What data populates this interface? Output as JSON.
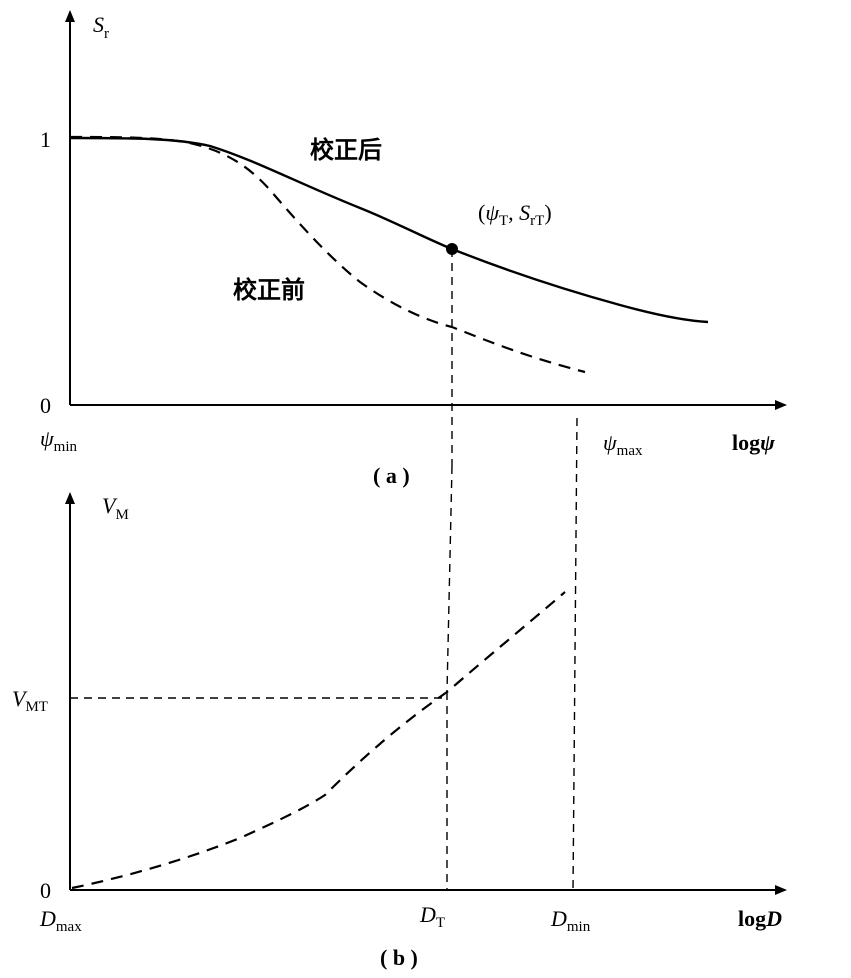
{
  "panel_a": {
    "y_axis_label": "S",
    "y_axis_label_sub": "r",
    "tick_one": "1",
    "tick_zero": "0",
    "x_min_label": "ψ",
    "x_min_label_sub": "min",
    "x_max_label": "ψ",
    "x_max_label_sub": "max",
    "x_axis_label_prefix": "log",
    "x_axis_label_var": "ψ",
    "label_after": "校正后",
    "label_before": "校正前",
    "point_label_open": "(",
    "point_label_psi": "ψ",
    "point_label_psi_sub": "T",
    "point_label_comma": ", ",
    "point_label_s": "S",
    "point_label_s_sub": "rT",
    "point_label_close": ")",
    "caption": "( a )"
  },
  "panel_b": {
    "y_axis_label": "V",
    "y_axis_label_sub": "M",
    "tick_vmt": "V",
    "tick_vmt_sub": "MT",
    "tick_zero": "0",
    "x_dmax": "D",
    "x_dmax_sub": "max",
    "x_dt": "D",
    "x_dt_sub": "T",
    "x_dmin": "D",
    "x_dmin_sub": "min",
    "x_axis_label_prefix": "log",
    "x_axis_label_var": "D",
    "caption": "( b )"
  }
}
